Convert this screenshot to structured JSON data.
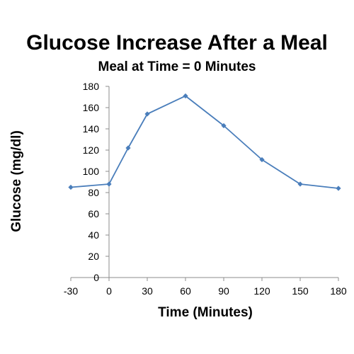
{
  "chart_data": {
    "type": "line",
    "title": "Glucose Increase After a Meal",
    "subtitle": "Meal at Time = 0 Minutes",
    "xlabel": "Time (Minutes)",
    "ylabel": "Glucose (mg/dl)",
    "xlim": [
      -30,
      180
    ],
    "ylim": [
      0,
      180
    ],
    "x_ticks": [
      -30,
      0,
      30,
      60,
      90,
      120,
      150,
      180
    ],
    "y_ticks": [
      0,
      20,
      40,
      60,
      80,
      100,
      120,
      140,
      160,
      180
    ],
    "grid": false,
    "legend": false,
    "series": [
      {
        "color": "#4a7ebb",
        "marker": "diamond",
        "x": [
          -30,
          0,
          15,
          30,
          60,
          90,
          120,
          150,
          180
        ],
        "y": [
          85,
          88,
          122,
          154,
          171,
          143,
          111,
          88,
          84
        ]
      }
    ]
  }
}
